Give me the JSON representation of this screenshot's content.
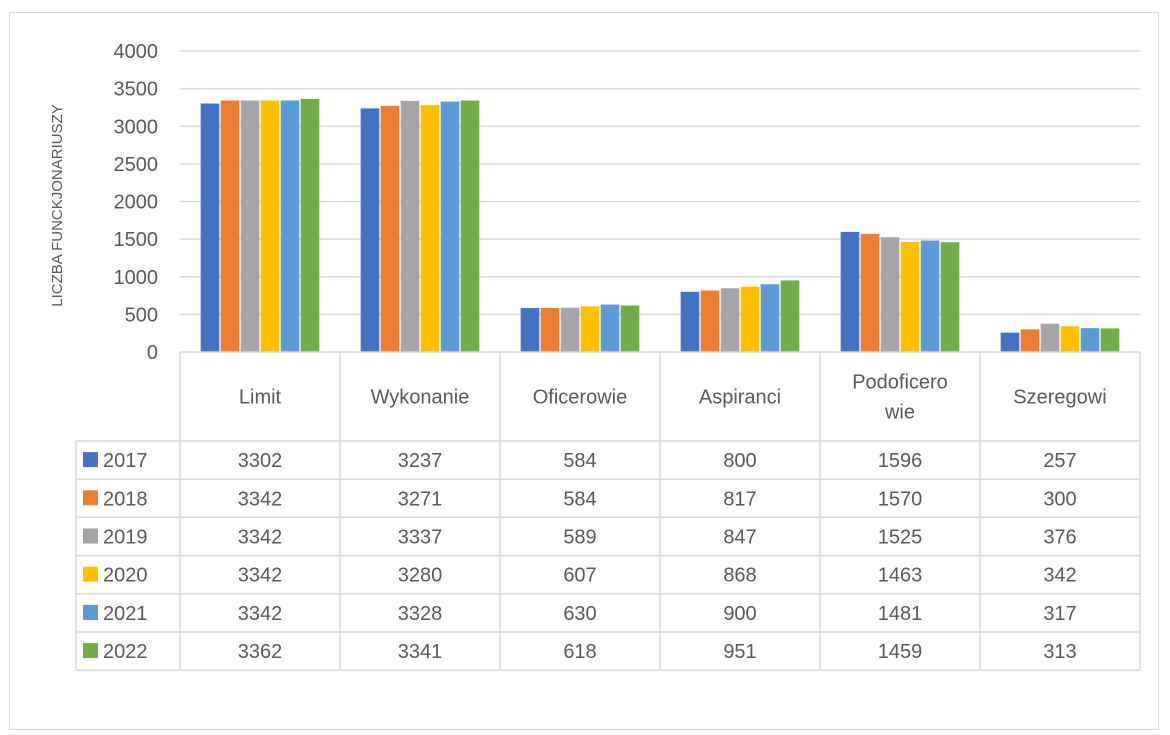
{
  "chart_data": {
    "type": "bar",
    "ylabel": "LICZBA FUNCKJONARIUSZY",
    "ylim": [
      0,
      4000
    ],
    "yticks": [
      0,
      500,
      1000,
      1500,
      2000,
      2500,
      3000,
      3500,
      4000
    ],
    "grid": true,
    "legend": "data-table",
    "categories": [
      [
        "Limit"
      ],
      [
        "Wykonanie"
      ],
      [
        "Oficerowie"
      ],
      [
        "Aspiranci"
      ],
      [
        "Podoficero",
        "wie"
      ],
      [
        "Szeregowi"
      ]
    ],
    "series": [
      {
        "name": "2017",
        "color": "#4472c4",
        "values": [
          3302,
          3237,
          584,
          800,
          1596,
          257
        ]
      },
      {
        "name": "2018",
        "color": "#ed7d31",
        "values": [
          3342,
          3271,
          584,
          817,
          1570,
          300
        ]
      },
      {
        "name": "2019",
        "color": "#a5a5a5",
        "values": [
          3342,
          3337,
          589,
          847,
          1525,
          376
        ]
      },
      {
        "name": "2020",
        "color": "#ffc000",
        "values": [
          3342,
          3280,
          607,
          868,
          1463,
          342
        ]
      },
      {
        "name": "2021",
        "color": "#5b9bd5",
        "values": [
          3342,
          3328,
          630,
          900,
          1481,
          317
        ]
      },
      {
        "name": "2022",
        "color": "#70ad47",
        "values": [
          3362,
          3341,
          618,
          951,
          1459,
          313
        ]
      }
    ]
  }
}
